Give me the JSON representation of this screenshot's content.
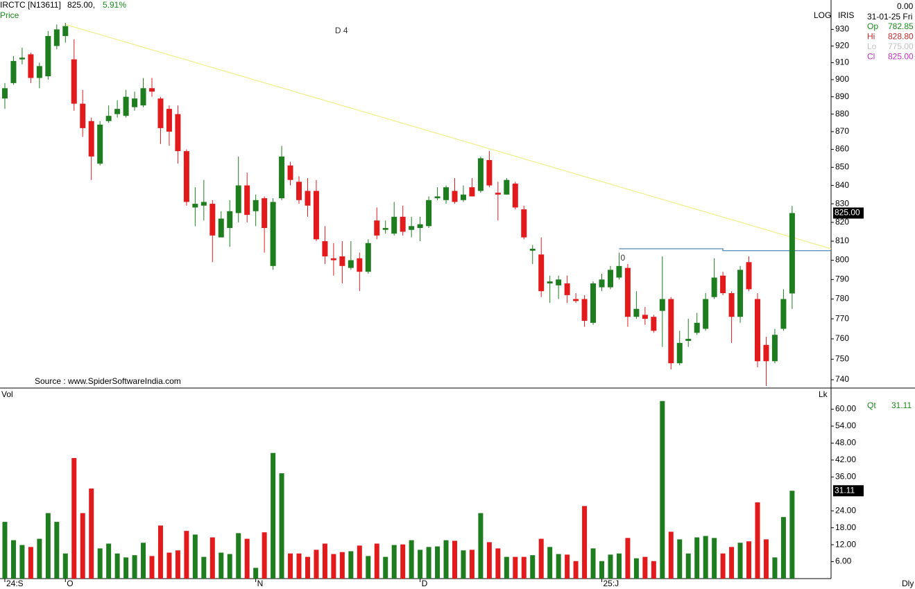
{
  "header": {
    "symbol": "IRCTC [N13611]",
    "last": "825.00,",
    "change": "5.91%",
    "panel": "Price",
    "mode": "LOG",
    "study": "IRIS",
    "zero": "0.00",
    "date": "31-01-25 Fri",
    "source": "Source : www.SpiderSoftwareIndia.com",
    "interval": "Dly",
    "ohlc_legend": [
      {
        "label": "Op",
        "value": "782.85",
        "color": "#1a8a1a"
      },
      {
        "label": "Hi",
        "value": "828.80",
        "color": "#c0282c"
      },
      {
        "label": "Lo",
        "value": "775.00",
        "color": "#c0c0c0"
      },
      {
        "label": "Cl",
        "value": "825.00",
        "color": "#c030c0"
      }
    ],
    "vol_panel": "Vol",
    "vol_unit": "Lk",
    "qt_label": "Qt",
    "qt_value": "31.11"
  },
  "chart_data": [
    {
      "type": "candlestick",
      "title": "Price",
      "log": true,
      "ylim": [
        736,
        948
      ],
      "yticks": [
        740,
        750,
        760,
        770,
        780,
        790,
        800,
        810,
        820,
        830,
        840,
        850,
        860,
        870,
        880,
        890,
        900,
        910,
        920,
        930
      ],
      "xlim": [
        -0.56,
        95.5
      ],
      "up_color": "#1e7d1e",
      "down_color": "#e31a1c",
      "x_ticks": [
        {
          "value": 0,
          "label": "24:S"
        },
        {
          "value": 7,
          "label": "O"
        },
        {
          "value": 29,
          "label": "N"
        },
        {
          "value": 48,
          "label": "D"
        },
        {
          "value": 69,
          "label": "25:J"
        }
      ],
      "open": [
        889,
        898,
        912,
        915,
        901,
        902,
        920,
        926,
        912,
        886,
        876,
        852,
        876,
        880,
        879,
        884,
        885,
        895,
        889,
        883,
        880,
        859,
        828,
        829,
        830,
        812,
        817,
        825,
        840,
        826,
        833,
        797,
        833,
        851,
        842,
        837,
        837,
        810,
        801,
        802,
        796,
        801,
        794,
        821,
        816,
        814,
        823,
        816,
        817,
        818,
        833,
        832,
        837,
        832,
        839,
        837,
        854,
        836,
        835,
        841,
        827,
        805,
        803,
        788,
        787,
        788,
        780,
        780,
        768,
        786,
        786,
        791,
        796,
        771,
        772,
        771,
        774,
        780,
        748,
        759,
        763,
        765,
        781,
        792,
        783,
        771,
        799,
        780,
        757,
        749,
        765,
        782.85
      ],
      "high": [
        898,
        914,
        919,
        916,
        910,
        929,
        933,
        934,
        924,
        894,
        878,
        876,
        885,
        888,
        894,
        893,
        901,
        901,
        890,
        885,
        885,
        860,
        839,
        843,
        832,
        826,
        832,
        856,
        847,
        835,
        834,
        833,
        862,
        853,
        845,
        844,
        843,
        818,
        809,
        810,
        810,
        804,
        811,
        828,
        821,
        831,
        829,
        823,
        823,
        834,
        839,
        840,
        844,
        840,
        844,
        856,
        859,
        842,
        844,
        842,
        829,
        808,
        812,
        792,
        792,
        792,
        783,
        782,
        789,
        793,
        797,
        804,
        798,
        784,
        776,
        772,
        802,
        781,
        764,
        770,
        773,
        783,
        801,
        794,
        784,
        797,
        802,
        783,
        761,
        765,
        785,
        828.8
      ],
      "low": [
        883,
        897,
        909,
        898,
        895,
        900,
        918,
        922,
        882,
        867,
        843,
        851,
        875,
        878,
        878,
        882,
        884,
        890,
        863,
        862,
        852,
        829,
        818,
        821,
        799,
        812,
        807,
        820,
        820,
        818,
        804,
        795,
        832,
        840,
        830,
        823,
        810,
        798,
        792,
        788,
        795,
        784,
        793,
        811,
        814,
        813,
        813,
        812,
        810,
        817,
        832,
        830,
        830,
        831,
        834,
        836,
        839,
        821,
        835,
        827,
        811,
        798,
        781,
        778,
        780,
        778,
        778,
        766,
        767,
        784,
        785,
        790,
        766,
        770,
        767,
        763,
        756,
        745,
        747,
        756,
        762,
        764,
        780,
        782,
        758,
        768,
        784,
        746,
        737,
        748,
        764,
        775
      ],
      "close": [
        895,
        911,
        913,
        901,
        908,
        926,
        930,
        932,
        886,
        872,
        856,
        874,
        879,
        883,
        890,
        889,
        895,
        893,
        872,
        870,
        859,
        831,
        830,
        831,
        813,
        822,
        826,
        840,
        824,
        832,
        817,
        831,
        856,
        843,
        832,
        829,
        811,
        802,
        800,
        797,
        800,
        794,
        809,
        813,
        817,
        823,
        815,
        818,
        819,
        832,
        834,
        839,
        831,
        835,
        834,
        855,
        840,
        835,
        843,
        828,
        812,
        806,
        784,
        789,
        790,
        782,
        779,
        769,
        788,
        790,
        795,
        797,
        771,
        775,
        770,
        764,
        780,
        748,
        758,
        760,
        768,
        780,
        791,
        783,
        771,
        795,
        785,
        749,
        749,
        762,
        780,
        825
      ],
      "trendlines": [
        {
          "color": "#f3ee8c",
          "points": [
            [
              7,
              933
            ],
            [
              95.5,
              806
            ]
          ]
        },
        {
          "color": "#4f86b8",
          "points": [
            [
              71,
              806
            ],
            [
              83,
              806
            ],
            [
              83,
              805
            ],
            [
              95.5,
              805
            ]
          ]
        }
      ],
      "annotations": [
        {
          "text": "D 4",
          "x": 38,
          "y": 929
        },
        {
          "text": "0",
          "x": 71,
          "y": 801
        }
      ]
    },
    {
      "type": "bar",
      "title": "Vol",
      "ylim": [
        0,
        67
      ],
      "yticks": [
        {
          "value": 6,
          "label": "6.00"
        },
        {
          "value": 12,
          "label": "12.00"
        },
        {
          "value": 18,
          "label": "18.00"
        },
        {
          "value": 24,
          "label": "24.00"
        },
        {
          "value": 36,
          "label": "36.00"
        },
        {
          "value": 42,
          "label": "42.00"
        },
        {
          "value": 48,
          "label": "48.00"
        },
        {
          "value": 54,
          "label": "54.00"
        },
        {
          "value": 60,
          "label": "60.00"
        }
      ],
      "values": [
        20.1,
        13.6,
        11.9,
        11.2,
        14.1,
        23.2,
        20.1,
        8.9,
        42.7,
        23.2,
        31.9,
        10.7,
        12.4,
        8.9,
        7.5,
        8.3,
        12.7,
        8,
        18.8,
        9.2,
        10,
        16.9,
        15.6,
        7.7,
        14.6,
        9.2,
        8.7,
        16.1,
        14.1,
        3.8,
        16.4,
        44.5,
        37.3,
        8.9,
        8.9,
        7.7,
        10.2,
        12.4,
        8.7,
        9.4,
        9.7,
        11.7,
        8,
        12.4,
        7.7,
        11.9,
        12.1,
        13.6,
        10.2,
        11.2,
        11.4,
        13.6,
        13.4,
        10,
        10.2,
        23.2,
        12.9,
        10.7,
        7.7,
        7.7,
        7.7,
        8.3,
        14.1,
        11.2,
        8.7,
        8.5,
        6.2,
        25.7,
        10.7,
        6.2,
        8.5,
        8.9,
        14.4,
        7.2,
        7.7,
        6.2,
        62.9,
        16.6,
        13.9,
        8.9,
        14.6,
        15.1,
        14.4,
        8.9,
        11.2,
        12.7,
        13.2,
        27,
        13.9,
        7.5,
        21.8,
        31.11
      ]
    }
  ]
}
